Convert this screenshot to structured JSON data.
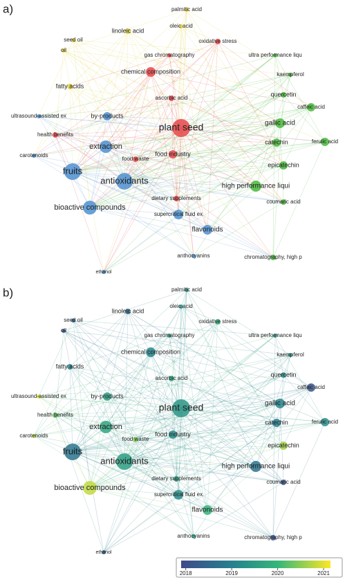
{
  "panels": [
    {
      "label": "a)"
    },
    {
      "label": "b)"
    }
  ],
  "nodes": [
    {
      "label": "palmitic acid"
    },
    {
      "label": "oleic acid"
    },
    {
      "label": "linoleic acid"
    },
    {
      "label": "seed oil"
    },
    {
      "label": "oil"
    },
    {
      "label": "oxidative stress"
    },
    {
      "label": "gas chromatography"
    },
    {
      "label": "ultra performance liqu"
    },
    {
      "label": "kaempferol"
    },
    {
      "label": "chemical composition"
    },
    {
      "label": "fatty acids"
    },
    {
      "label": "quercetin"
    },
    {
      "label": "ascorbic acid"
    },
    {
      "label": "caffeic acid"
    },
    {
      "label": "by-products"
    },
    {
      "label": "ultrasound-assisted ex"
    },
    {
      "label": "health benefits"
    },
    {
      "label": "plant seed"
    },
    {
      "label": "gallic acid"
    },
    {
      "label": "ferulic acid"
    },
    {
      "label": "catechin"
    },
    {
      "label": "extraction"
    },
    {
      "label": "carotenoids"
    },
    {
      "label": "food waste"
    },
    {
      "label": "food industry"
    },
    {
      "label": "epicatechin"
    },
    {
      "label": "fruits"
    },
    {
      "label": "antioxidants"
    },
    {
      "label": "high performance liqui"
    },
    {
      "label": "dietary supplements"
    },
    {
      "label": "coumaric acid"
    },
    {
      "label": "bioactive compounds"
    },
    {
      "label": "supercritical fluid ex"
    },
    {
      "label": "flavonoids"
    },
    {
      "label": "anthocyanins"
    },
    {
      "label": "chromatography, high p"
    },
    {
      "label": "ethanol"
    }
  ],
  "colorbar": {
    "range": [
      2017.9,
      2021.15
    ],
    "ticks": [
      2018,
      2019,
      2020,
      2021
    ]
  }
}
